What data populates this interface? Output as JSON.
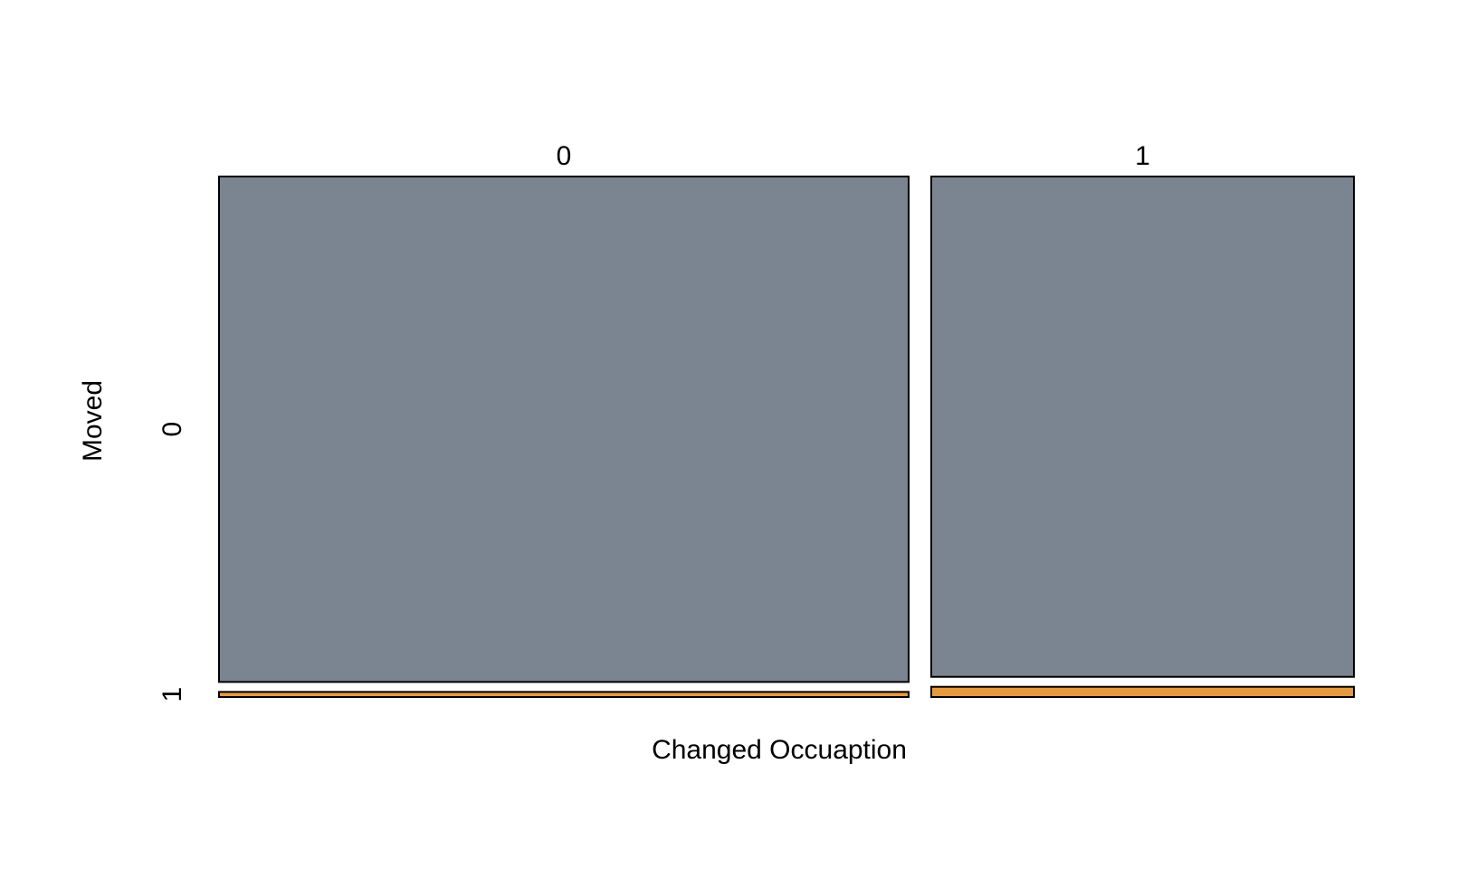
{
  "chart_data": {
    "type": "mosaic",
    "title": "",
    "xlabel": "Changed Occuaption",
    "ylabel": "Moved",
    "x_categories": [
      "0",
      "1"
    ],
    "y_categories": [
      "0",
      "1"
    ],
    "column_proportions": [
      0.62,
      0.38
    ],
    "cells": [
      {
        "x": "0",
        "y": "0",
        "proportion": 0.99
      },
      {
        "x": "0",
        "y": "1",
        "proportion": 0.01
      },
      {
        "x": "1",
        "y": "0",
        "proportion": 0.98
      },
      {
        "x": "1",
        "y": "1",
        "proportion": 0.02
      }
    ],
    "colors": {
      "0": "#7b8491",
      "1": "#e89a3a"
    },
    "border_color": "#000000"
  }
}
